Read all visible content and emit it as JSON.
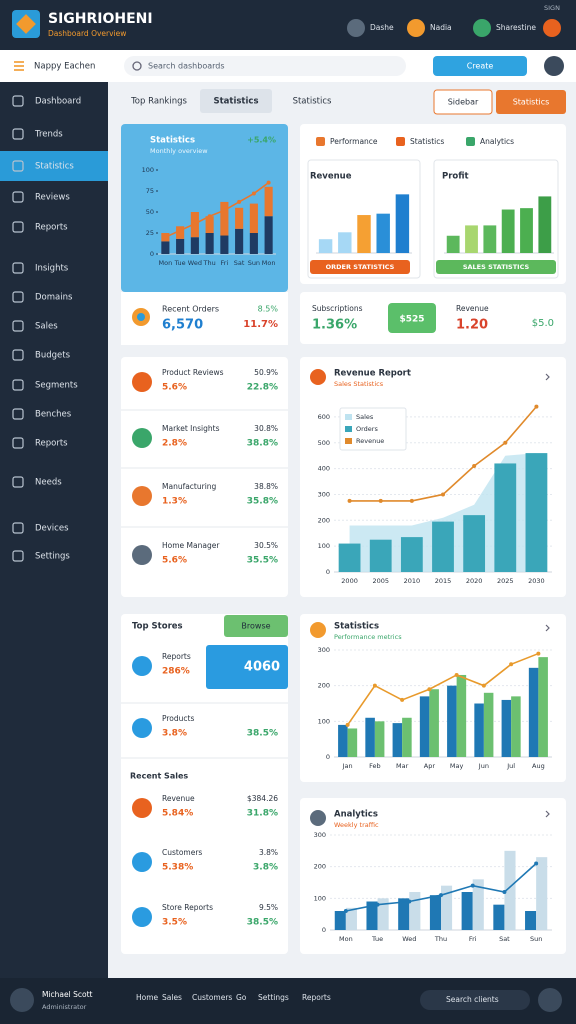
{
  "header": {
    "title": "SIGHRIOHENI",
    "subtitle": "Dashboard Overview",
    "status": "SIGN",
    "links": [
      "Dashe",
      "Nadia",
      "Sharestine"
    ]
  },
  "toolbar": {
    "menu": "Nappy Eachen",
    "search": "Search dashboards",
    "button": "Create"
  },
  "sidebar": {
    "items": [
      "Dashboard",
      "Trends",
      "Statistics",
      "Reviews",
      "Reports",
      "Insights",
      "Domains",
      "Sales",
      "Budgets",
      "Segments",
      "Benches",
      "Reports",
      "Needs",
      "Devices",
      "Settings"
    ],
    "active": 2
  },
  "tabs": {
    "items": [
      "Top Rankings",
      "Statistics",
      "Statistics"
    ],
    "active": 1,
    "actions": [
      "Sidebar",
      "Statistics"
    ]
  },
  "summary": {
    "label": "Recent Orders",
    "value": "6,570",
    "change": "8.5%",
    "delta": "11.7%"
  },
  "panel_tabs": [
    "Performance",
    "Statistics",
    "Analytics"
  ],
  "kpis": [
    {
      "label": "Subscriptions",
      "value": "1.36%",
      "badge": "$525"
    },
    {
      "label": "Revenue",
      "value": "1.20",
      "badge": "$5.0"
    }
  ],
  "lists": [
    {
      "items": [
        {
          "name": "Product Reviews",
          "value": "5.6%",
          "change": "50.9%",
          "delta": "22.8%"
        },
        {
          "name": "Market Insights",
          "value": "2.8%",
          "change": "30.8%",
          "delta": "38.8%"
        },
        {
          "name": "Manufacturing",
          "value": "1.3%",
          "change": "38.8%",
          "delta": "35.8%"
        },
        {
          "name": "Home Manager",
          "value": "5.6%",
          "change": "30.5%",
          "delta": "35.5%"
        }
      ]
    },
    {
      "title": "Top Stores",
      "button": "Browse",
      "highlight": "4060",
      "section": "Recent Sales",
      "items": [
        {
          "name": "Reports",
          "value": "286%"
        },
        {
          "name": "Products",
          "value": "3.8%",
          "delta": "38.5%"
        },
        {
          "name": "Revenue",
          "value": "5.84%",
          "change": "$384.26",
          "delta": "31.8%"
        },
        {
          "name": "Customers",
          "value": "5.38%",
          "change": "3.8%",
          "delta": "3.8%"
        },
        {
          "name": "Store Reports",
          "value": "3.5%",
          "change": "9.5%",
          "delta": "38.5%"
        }
      ]
    }
  ],
  "footer": {
    "user": "Michael Scott",
    "role": "Administrator",
    "links": [
      "Home",
      "Sales",
      "Customers",
      "Go",
      "Settings",
      "Reports"
    ],
    "search": "Search clients"
  },
  "chart_data": [
    {
      "type": "bar",
      "title": "Statistics",
      "subtitle": "Monthly overview",
      "badge": "+5.4%",
      "stacked": true,
      "categories": [
        "Mon",
        "Tue",
        "Wed",
        "Thu",
        "Fri",
        "Sat",
        "Sun",
        "Mon"
      ],
      "ylim": [
        0,
        100
      ],
      "yticks": [
        0,
        25,
        50,
        75,
        100
      ],
      "series": [
        {
          "kind": "bar",
          "color": "#1f3b63",
          "values": [
            15,
            18,
            20,
            25,
            22,
            30,
            25,
            45
          ]
        },
        {
          "kind": "bar",
          "color": "#e8772e",
          "values": [
            10,
            15,
            30,
            20,
            40,
            25,
            35,
            35
          ]
        },
        {
          "kind": "line",
          "color": "#e8772e",
          "values": [
            20,
            28,
            36,
            45,
            52,
            62,
            72,
            85
          ]
        }
      ]
    },
    {
      "type": "bar",
      "title": "Revenue",
      "button": "ORDER STATISTICS",
      "ylim": [
        0,
        100
      ],
      "series": [
        {
          "kind": "bar",
          "colors": [
            "#a6d8f5",
            "#a6d8f5",
            "#f5a033",
            "#2a8fd8",
            "#1f7fcf"
          ],
          "values": [
            20,
            30,
            55,
            57,
            85
          ]
        }
      ]
    },
    {
      "type": "bar",
      "title": "Profit",
      "button": "SALES STATISTICS",
      "ylim": [
        0,
        100
      ],
      "series": [
        {
          "kind": "bar",
          "colors": [
            "#5cb85c",
            "#a8d66f",
            "#5cb85c",
            "#4caf50",
            "#4caf50",
            "#3d9e48"
          ],
          "values": [
            25,
            40,
            40,
            63,
            65,
            82
          ]
        }
      ]
    },
    {
      "type": "bar",
      "title": "Revenue Report",
      "subtitle": "Sales Statistics",
      "grid": true,
      "legend": "upper left",
      "categories": [
        "2000",
        "2005",
        "2010",
        "2015",
        "2020",
        "2025",
        "2030"
      ],
      "ylim": [
        0,
        650
      ],
      "yticks": [
        0,
        100,
        200,
        300,
        400,
        500,
        600
      ],
      "series": [
        {
          "name": "Sales",
          "kind": "area",
          "color": "#bfe3f0",
          "values": [
            180,
            180,
            180,
            210,
            260,
            450,
            460
          ]
        },
        {
          "name": "Orders",
          "kind": "bar",
          "color": "#3aa6b9",
          "values": [
            110,
            125,
            135,
            195,
            220,
            420,
            460
          ]
        },
        {
          "name": "Revenue",
          "kind": "line",
          "color": "#e08a2c",
          "values": [
            275,
            275,
            275,
            300,
            410,
            500,
            640
          ]
        }
      ]
    },
    {
      "type": "bar",
      "title": "Statistics",
      "subtitle": "Performance metrics",
      "grid": true,
      "categories": [
        "Jan",
        "Feb",
        "Mar",
        "Apr",
        "May",
        "Jun",
        "Jul",
        "Aug"
      ],
      "ylim": [
        0,
        300
      ],
      "yticks": [
        0,
        100,
        200,
        300
      ],
      "series": [
        {
          "kind": "bar",
          "color": "#1f78b4",
          "values": [
            90,
            110,
            95,
            170,
            200,
            150,
            160,
            250
          ]
        },
        {
          "kind": "bar",
          "color": "#6cc070",
          "values": [
            80,
            100,
            110,
            190,
            230,
            180,
            170,
            280
          ]
        },
        {
          "kind": "line",
          "color": "#e89a2c",
          "values": [
            90,
            200,
            160,
            190,
            230,
            200,
            260,
            290
          ]
        }
      ]
    },
    {
      "type": "bar",
      "title": "Analytics",
      "subtitle": "Weekly traffic",
      "grid": true,
      "categories": [
        "Mon",
        "Tue",
        "Wed",
        "Thu",
        "Fri",
        "Sat",
        "Sun"
      ],
      "ylim": [
        0,
        300
      ],
      "yticks": [
        0,
        100,
        200,
        300
      ],
      "series": [
        {
          "kind": "bar",
          "color": "#1f78b4",
          "values": [
            60,
            90,
            100,
            110,
            120,
            80,
            60
          ]
        },
        {
          "kind": "bar",
          "color": "#c9dde9",
          "values": [
            70,
            100,
            120,
            140,
            160,
            250,
            230
          ]
        },
        {
          "kind": "line",
          "color": "#1f78b4",
          "values": [
            60,
            80,
            90,
            110,
            140,
            120,
            210
          ]
        }
      ]
    }
  ]
}
